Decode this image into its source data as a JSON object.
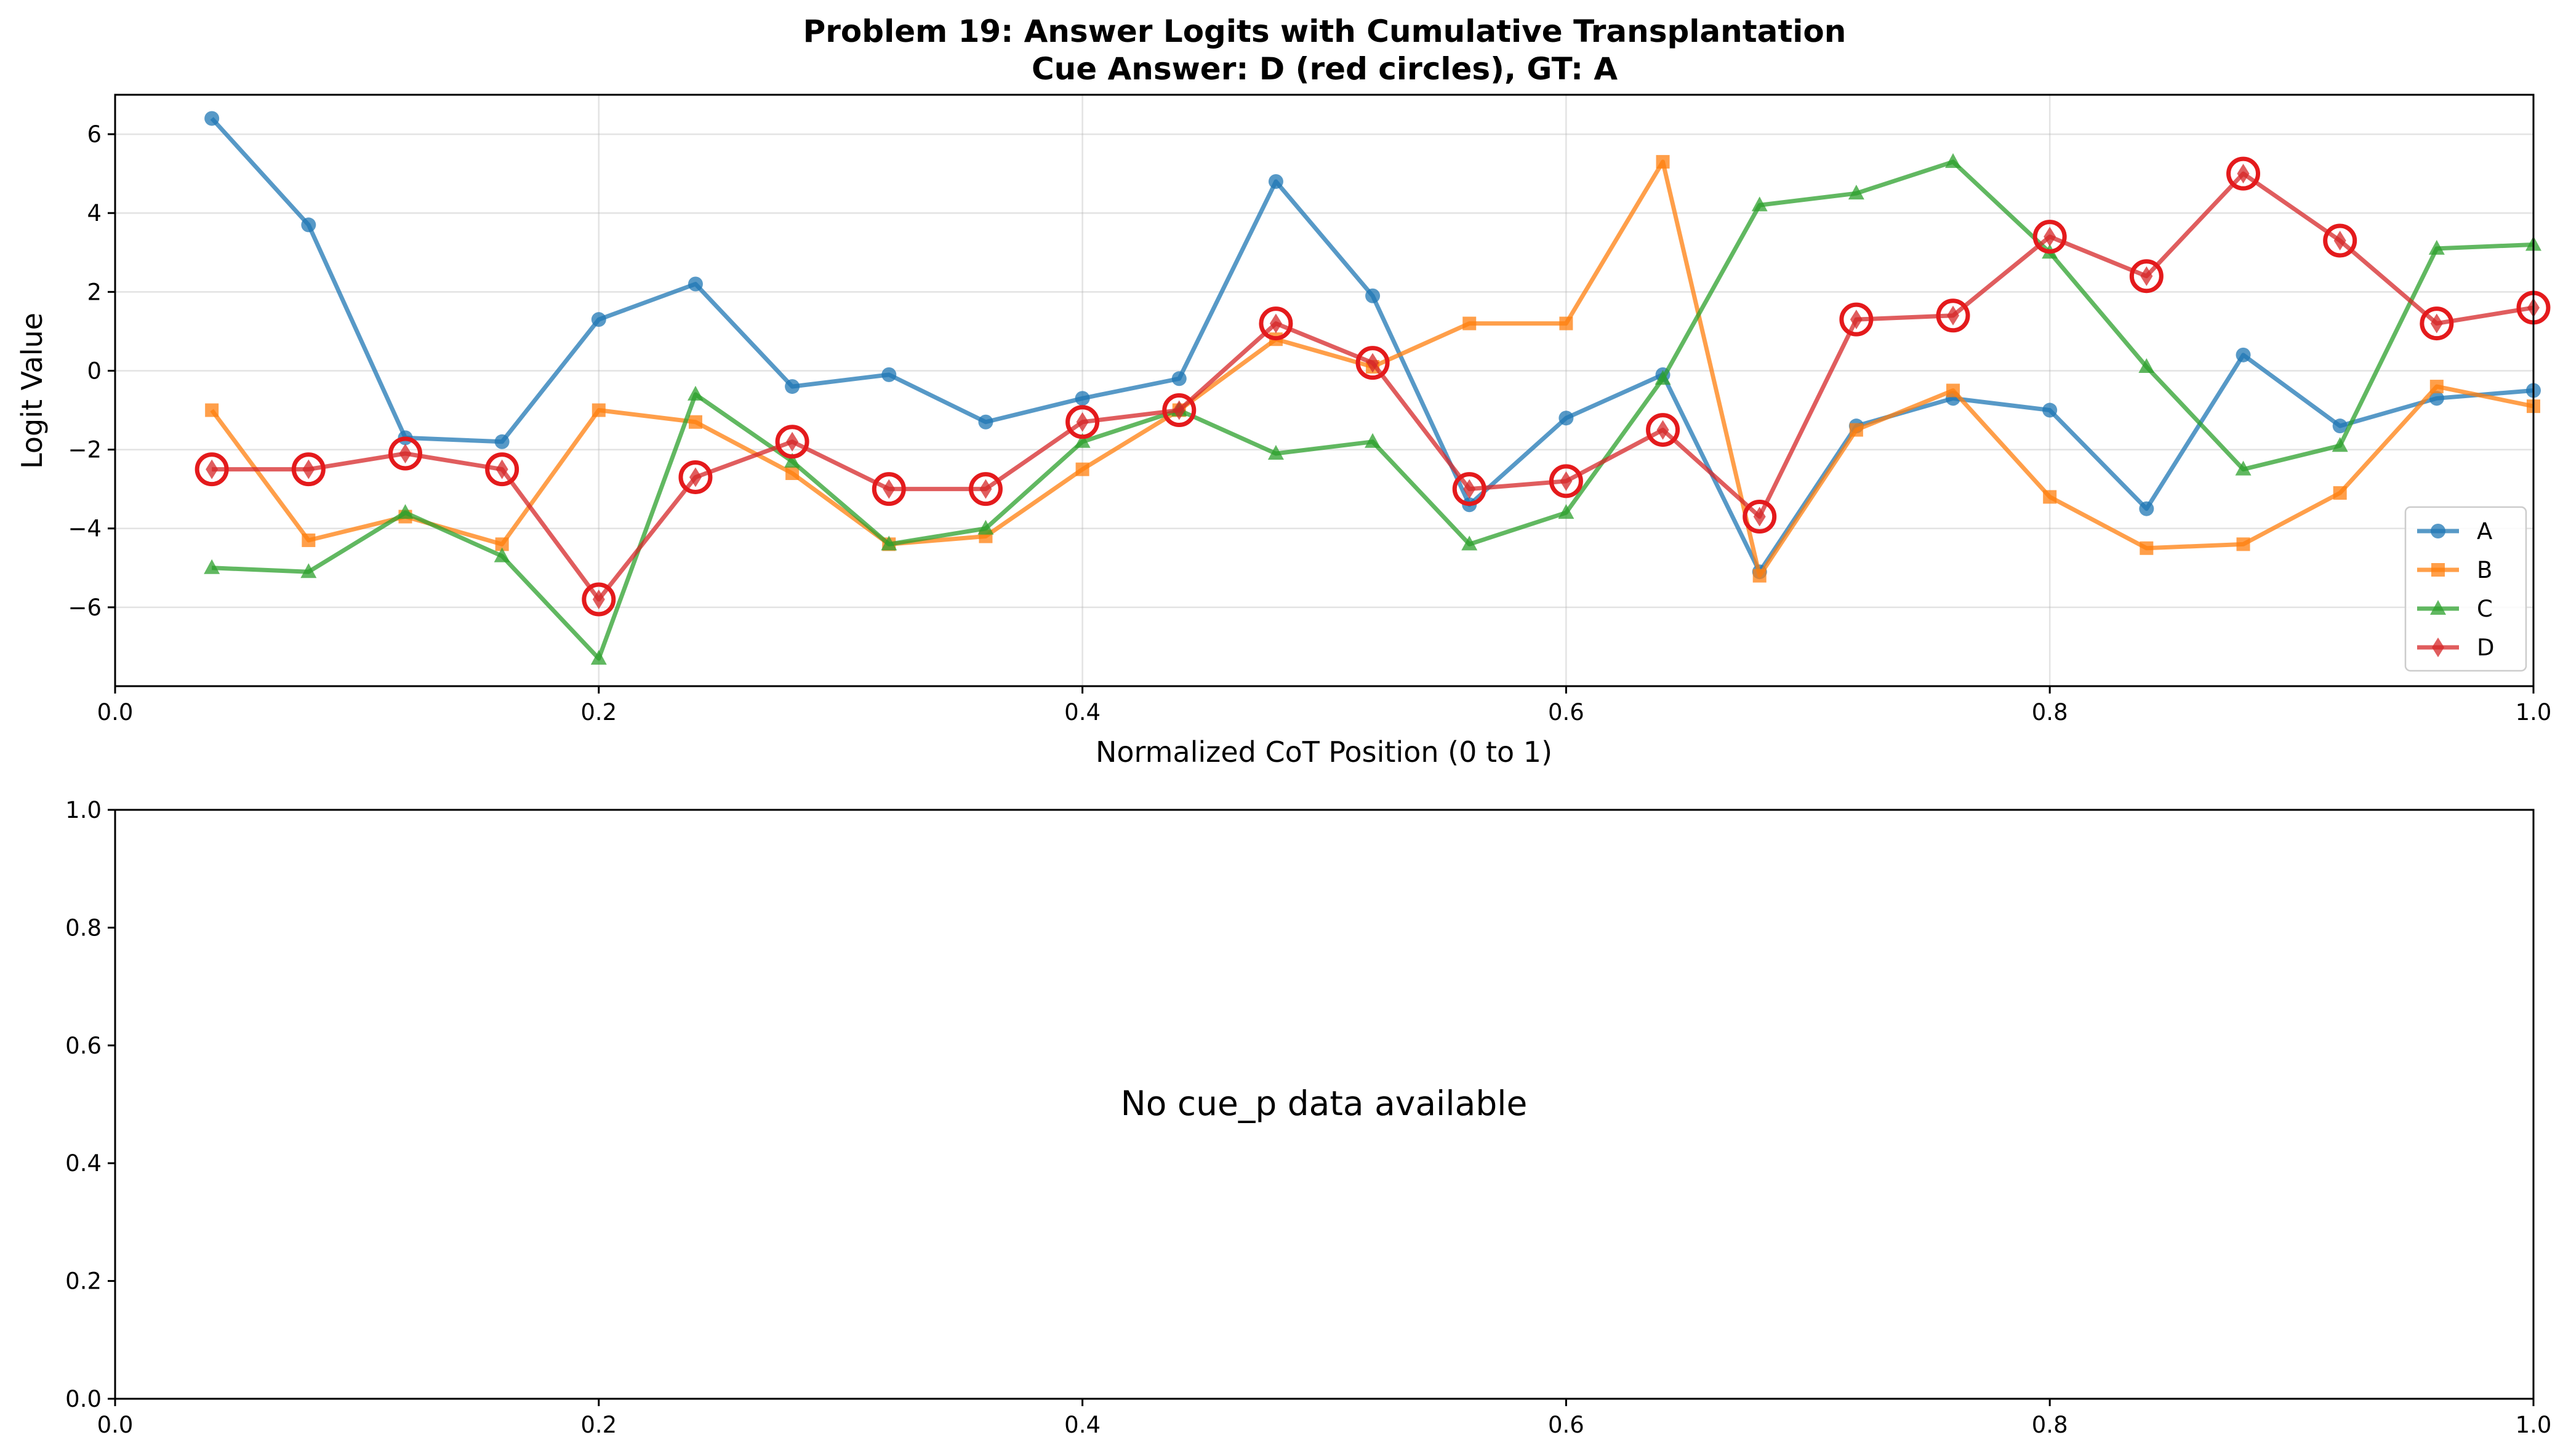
{
  "chart_data": [
    {
      "type": "line",
      "title": "Problem 19: Answer Logits with Cumulative Transplantation",
      "subtitle": "Cue Answer: D (red circles), GT: A",
      "xlabel": "Normalized CoT Position (0 to 1)",
      "ylabel": "Logit Value",
      "xlim": [
        0.0,
        1.0
      ],
      "ylim": [
        -8.0,
        7.0
      ],
      "xticks": [
        "0.0",
        "0.2",
        "0.4",
        "0.6",
        "0.8",
        "1.0"
      ],
      "yticks": [
        "−6",
        "−4",
        "−2",
        "0",
        "2",
        "4",
        "6"
      ],
      "grid": true,
      "legend_position": "lower-right",
      "x": [
        0.04,
        0.08,
        0.12,
        0.16,
        0.2,
        0.24,
        0.28,
        0.32,
        0.36,
        0.4,
        0.44,
        0.48,
        0.52,
        0.56,
        0.6,
        0.64,
        0.68,
        0.72,
        0.76,
        0.8,
        0.84,
        0.88,
        0.92,
        0.96,
        1.0
      ],
      "series": [
        {
          "name": "A",
          "color": "#1f77b4",
          "marker": "circle",
          "values": [
            6.4,
            3.7,
            -1.7,
            -1.8,
            1.3,
            2.2,
            -0.4,
            -0.1,
            -1.3,
            -0.7,
            -0.2,
            4.8,
            1.9,
            -3.4,
            -1.2,
            -0.1,
            -5.1,
            -1.4,
            -0.7,
            -1.0,
            -3.5,
            0.4,
            -1.4,
            -0.7,
            -0.5
          ]
        },
        {
          "name": "B",
          "color": "#ff7f0e",
          "marker": "square",
          "values": [
            -1.0,
            -4.3,
            -3.7,
            -4.4,
            -1.0,
            -1.3,
            -2.6,
            -4.4,
            -4.2,
            -2.5,
            -1.0,
            0.8,
            0.1,
            1.2,
            1.2,
            5.3,
            -5.2,
            -1.5,
            -0.5,
            -3.2,
            -4.5,
            -4.4,
            -3.1,
            -0.4,
            -0.9
          ]
        },
        {
          "name": "C",
          "color": "#2ca02c",
          "marker": "triangle",
          "values": [
            -5.0,
            -5.1,
            -3.6,
            -4.7,
            -7.3,
            -0.6,
            -2.3,
            -4.4,
            -4.0,
            -1.8,
            -1.0,
            -2.1,
            -1.8,
            -4.4,
            -3.6,
            -0.2,
            4.2,
            4.5,
            5.3,
            3.0,
            0.1,
            -2.5,
            -1.9,
            3.1,
            3.2
          ]
        },
        {
          "name": "D",
          "color": "#d62728",
          "marker": "diamond",
          "highlighted": true,
          "values": [
            -2.5,
            -2.5,
            -2.1,
            -2.5,
            -5.8,
            -2.7,
            -1.8,
            -3.0,
            -3.0,
            -1.3,
            -1.0,
            1.2,
            0.2,
            -3.0,
            -2.8,
            -1.5,
            -3.7,
            1.3,
            1.4,
            3.4,
            2.4,
            5.0,
            3.3,
            1.2,
            1.6
          ]
        }
      ],
      "highlight_color": "#e41a1c"
    },
    {
      "type": "line",
      "title": "",
      "xlabel": "",
      "ylabel": "",
      "xlim": [
        0.0,
        1.0
      ],
      "ylim": [
        0.0,
        1.0
      ],
      "xticks": [
        "0.0",
        "0.2",
        "0.4",
        "0.6",
        "0.8",
        "1.0"
      ],
      "yticks": [
        "0.0",
        "0.2",
        "0.4",
        "0.6",
        "0.8",
        "1.0"
      ],
      "grid": false,
      "annotation": "No cue_p data available",
      "series": []
    }
  ]
}
